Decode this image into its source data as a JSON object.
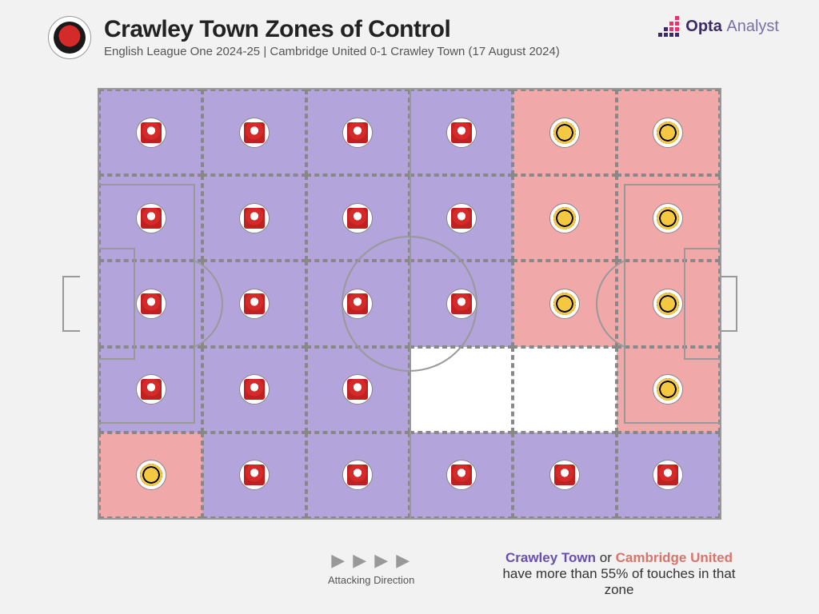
{
  "header": {
    "title": "Crawley Town Zones of Control",
    "subtitle": "English League One 2024-25 | Cambridge United 0-1 Crawley Town (17 August 2024)",
    "brand_name": "Opta",
    "brand_suffix": "Analyst"
  },
  "pitch": {
    "grid_cols": 6,
    "grid_rows": 5,
    "border_color": "#999999",
    "dash_color": "#888888",
    "zones": [
      {
        "r": 0,
        "c": 0,
        "owner": "crawley"
      },
      {
        "r": 0,
        "c": 1,
        "owner": "crawley"
      },
      {
        "r": 0,
        "c": 2,
        "owner": "crawley"
      },
      {
        "r": 0,
        "c": 3,
        "owner": "crawley"
      },
      {
        "r": 0,
        "c": 4,
        "owner": "cambridge"
      },
      {
        "r": 0,
        "c": 5,
        "owner": "cambridge"
      },
      {
        "r": 1,
        "c": 0,
        "owner": "crawley"
      },
      {
        "r": 1,
        "c": 1,
        "owner": "crawley"
      },
      {
        "r": 1,
        "c": 2,
        "owner": "crawley"
      },
      {
        "r": 1,
        "c": 3,
        "owner": "crawley"
      },
      {
        "r": 1,
        "c": 4,
        "owner": "cambridge"
      },
      {
        "r": 1,
        "c": 5,
        "owner": "cambridge"
      },
      {
        "r": 2,
        "c": 0,
        "owner": "crawley"
      },
      {
        "r": 2,
        "c": 1,
        "owner": "crawley"
      },
      {
        "r": 2,
        "c": 2,
        "owner": "crawley"
      },
      {
        "r": 2,
        "c": 3,
        "owner": "crawley"
      },
      {
        "r": 2,
        "c": 4,
        "owner": "cambridge"
      },
      {
        "r": 2,
        "c": 5,
        "owner": "cambridge"
      },
      {
        "r": 3,
        "c": 0,
        "owner": "crawley"
      },
      {
        "r": 3,
        "c": 1,
        "owner": "crawley"
      },
      {
        "r": 3,
        "c": 2,
        "owner": "crawley"
      },
      {
        "r": 3,
        "c": 3,
        "owner": "neutral"
      },
      {
        "r": 3,
        "c": 4,
        "owner": "neutral"
      },
      {
        "r": 3,
        "c": 5,
        "owner": "cambridge"
      },
      {
        "r": 4,
        "c": 0,
        "owner": "cambridge"
      },
      {
        "r": 4,
        "c": 1,
        "owner": "crawley"
      },
      {
        "r": 4,
        "c": 2,
        "owner": "crawley"
      },
      {
        "r": 4,
        "c": 3,
        "owner": "crawley"
      },
      {
        "r": 4,
        "c": 4,
        "owner": "crawley"
      },
      {
        "r": 4,
        "c": 5,
        "owner": "crawley"
      }
    ]
  },
  "colors": {
    "crawley_zone": "#b3a4db",
    "cambridge_zone": "#f0a8a8",
    "neutral_zone": "#ffffff",
    "background": "#f2f2f2"
  },
  "footer": {
    "attacking_direction_label": "Attacking Direction",
    "arrows_glyph": "▶ ▶ ▶ ▶",
    "legend_team1": "Crawley Town",
    "legend_or": " or ",
    "legend_team2": "Cambridge United",
    "legend_rest": "have more than 55% of touches in that zone",
    "team1_color": "#6a4fb3",
    "team2_color": "#d9746a"
  }
}
